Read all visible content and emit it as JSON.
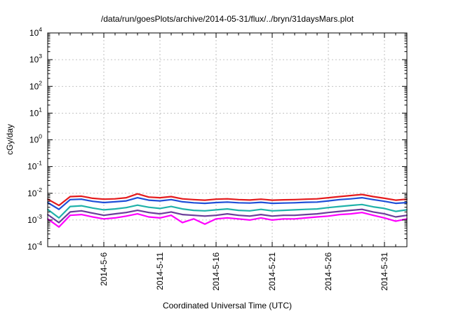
{
  "chart_data": {
    "type": "line",
    "title": "/data/run/goesPlots/archive/2014-05-31/flux/../bryn/31daysMars.plot",
    "xlabel": "Coordinated Universal Time (UTC)",
    "ylabel": "cGy/day",
    "yscale": "log",
    "ylim": [
      0.0001,
      10000
    ],
    "xlim": [
      "2014-05-01",
      "2014-06-02"
    ],
    "grid": true,
    "y_ticks": [
      {
        "base": "10",
        "exp": "-4"
      },
      {
        "base": "10",
        "exp": "-3"
      },
      {
        "base": "10",
        "exp": "-2"
      },
      {
        "base": "10",
        "exp": "-1"
      },
      {
        "base": "10",
        "exp": "0"
      },
      {
        "base": "10",
        "exp": "1"
      },
      {
        "base": "10",
        "exp": "2"
      },
      {
        "base": "10",
        "exp": "3"
      },
      {
        "base": "10",
        "exp": "4"
      }
    ],
    "x_ticks": [
      {
        "date": "2014-05-06",
        "label": "2014-5-6"
      },
      {
        "date": "2014-05-11",
        "label": "2014-5-11"
      },
      {
        "date": "2014-05-16",
        "label": "2014-5-16"
      },
      {
        "date": "2014-05-21",
        "label": "2014-5-21"
      },
      {
        "date": "2014-05-26",
        "label": "2014-5-26"
      },
      {
        "date": "2014-05-31",
        "label": "2014-5-31"
      }
    ],
    "series": [
      {
        "color": "#e41a1c",
        "x": [
          "2014-05-01",
          "2014-05-02",
          "2014-05-03",
          "2014-05-04",
          "2014-05-05",
          "2014-05-06",
          "2014-05-07",
          "2014-05-08",
          "2014-05-09",
          "2014-05-10",
          "2014-05-11",
          "2014-05-12",
          "2014-05-13",
          "2014-05-14",
          "2014-05-15",
          "2014-05-16",
          "2014-05-17",
          "2014-05-18",
          "2014-05-19",
          "2014-05-20",
          "2014-05-21",
          "2014-05-22",
          "2014-05-23",
          "2014-05-24",
          "2014-05-25",
          "2014-05-26",
          "2014-05-27",
          "2014-05-28",
          "2014-05-29",
          "2014-05-30",
          "2014-05-31",
          "2014-06-01",
          "2014-06-02"
        ],
        "values": [
          0.006,
          0.0035,
          0.0075,
          0.0078,
          0.0065,
          0.006,
          0.0062,
          0.0068,
          0.0095,
          0.0072,
          0.0068,
          0.0075,
          0.0062,
          0.0058,
          0.0055,
          0.006,
          0.0062,
          0.0058,
          0.0056,
          0.006,
          0.0055,
          0.0057,
          0.0058,
          0.006,
          0.0062,
          0.0068,
          0.0075,
          0.0082,
          0.009,
          0.0075,
          0.0065,
          0.0055,
          0.006
        ]
      },
      {
        "color": "#1f4fd8",
        "x": [
          "2014-05-01",
          "2014-05-02",
          "2014-05-03",
          "2014-05-04",
          "2014-05-05",
          "2014-05-06",
          "2014-05-07",
          "2014-05-08",
          "2014-05-09",
          "2014-05-10",
          "2014-05-11",
          "2014-05-12",
          "2014-05-13",
          "2014-05-14",
          "2014-05-15",
          "2014-05-16",
          "2014-05-17",
          "2014-05-18",
          "2014-05-19",
          "2014-05-20",
          "2014-05-21",
          "2014-05-22",
          "2014-05-23",
          "2014-05-24",
          "2014-05-25",
          "2014-05-26",
          "2014-05-27",
          "2014-05-28",
          "2014-05-29",
          "2014-05-30",
          "2014-05-31",
          "2014-06-01",
          "2014-06-02"
        ],
        "values": [
          0.0045,
          0.0025,
          0.0058,
          0.006,
          0.005,
          0.0045,
          0.0048,
          0.0052,
          0.0068,
          0.0055,
          0.0052,
          0.0058,
          0.0048,
          0.0044,
          0.0042,
          0.0045,
          0.0047,
          0.0044,
          0.0043,
          0.0046,
          0.0042,
          0.0043,
          0.0044,
          0.0046,
          0.0047,
          0.0052,
          0.0058,
          0.0062,
          0.0068,
          0.0058,
          0.005,
          0.0042,
          0.0045
        ]
      },
      {
        "color": "#20b2aa",
        "x": [
          "2014-05-01",
          "2014-05-02",
          "2014-05-03",
          "2014-05-04",
          "2014-05-05",
          "2014-05-06",
          "2014-05-07",
          "2014-05-08",
          "2014-05-09",
          "2014-05-10",
          "2014-05-11",
          "2014-05-12",
          "2014-05-13",
          "2014-05-14",
          "2014-05-15",
          "2014-05-16",
          "2014-05-17",
          "2014-05-18",
          "2014-05-19",
          "2014-05-20",
          "2014-05-21",
          "2014-05-22",
          "2014-05-23",
          "2014-05-24",
          "2014-05-25",
          "2014-05-26",
          "2014-05-27",
          "2014-05-28",
          "2014-05-29",
          "2014-05-30",
          "2014-05-31",
          "2014-06-01",
          "2014-06-02"
        ],
        "values": [
          0.0025,
          0.0012,
          0.0032,
          0.0034,
          0.0028,
          0.0024,
          0.0026,
          0.0029,
          0.0036,
          0.003,
          0.0027,
          0.0032,
          0.0026,
          0.0023,
          0.0022,
          0.0024,
          0.0026,
          0.0023,
          0.0022,
          0.0025,
          0.0022,
          0.0023,
          0.0024,
          0.0025,
          0.0026,
          0.0029,
          0.0032,
          0.0035,
          0.0038,
          0.0031,
          0.0027,
          0.0021,
          0.0024
        ]
      },
      {
        "color": "#6a3d9a",
        "x": [
          "2014-05-01",
          "2014-05-02",
          "2014-05-03",
          "2014-05-04",
          "2014-05-05",
          "2014-05-06",
          "2014-05-07",
          "2014-05-08",
          "2014-05-09",
          "2014-05-10",
          "2014-05-11",
          "2014-05-12",
          "2014-05-13",
          "2014-05-14",
          "2014-05-15",
          "2014-05-16",
          "2014-05-17",
          "2014-05-18",
          "2014-05-19",
          "2014-05-20",
          "2014-05-21",
          "2014-05-22",
          "2014-05-23",
          "2014-05-24",
          "2014-05-25",
          "2014-05-26",
          "2014-05-27",
          "2014-05-28",
          "2014-05-29",
          "2014-05-30",
          "2014-05-31",
          "2014-06-01",
          "2014-06-02"
        ],
        "values": [
          0.0016,
          0.0008,
          0.002,
          0.0022,
          0.0018,
          0.0015,
          0.0017,
          0.0019,
          0.0023,
          0.0019,
          0.0017,
          0.002,
          0.0016,
          0.0015,
          0.0014,
          0.0015,
          0.0017,
          0.0015,
          0.0014,
          0.0016,
          0.0014,
          0.0015,
          0.0015,
          0.0016,
          0.0017,
          0.0019,
          0.0021,
          0.0023,
          0.0025,
          0.002,
          0.0017,
          0.0013,
          0.0015
        ]
      },
      {
        "color": "#ff00ff",
        "x": [
          "2014-05-01",
          "2014-05-02",
          "2014-05-03",
          "2014-05-04",
          "2014-05-05",
          "2014-05-06",
          "2014-05-07",
          "2014-05-08",
          "2014-05-09",
          "2014-05-10",
          "2014-05-11",
          "2014-05-12",
          "2014-05-13",
          "2014-05-14",
          "2014-05-15",
          "2014-05-16",
          "2014-05-17",
          "2014-05-18",
          "2014-05-19",
          "2014-05-20",
          "2014-05-21",
          "2014-05-22",
          "2014-05-23",
          "2014-05-24",
          "2014-05-25",
          "2014-05-26",
          "2014-05-27",
          "2014-05-28",
          "2014-05-29",
          "2014-05-30",
          "2014-05-31",
          "2014-06-01",
          "2014-06-02"
        ],
        "values": [
          0.0011,
          0.00055,
          0.0015,
          0.0016,
          0.0013,
          0.0011,
          0.0012,
          0.0014,
          0.0017,
          0.0013,
          0.0012,
          0.0015,
          0.0008,
          0.0011,
          0.0007,
          0.0011,
          0.0012,
          0.0011,
          0.001,
          0.0012,
          0.001,
          0.0011,
          0.0011,
          0.0012,
          0.0013,
          0.0014,
          0.0016,
          0.0017,
          0.0019,
          0.0015,
          0.0012,
          0.0009,
          0.0011
        ]
      }
    ]
  }
}
